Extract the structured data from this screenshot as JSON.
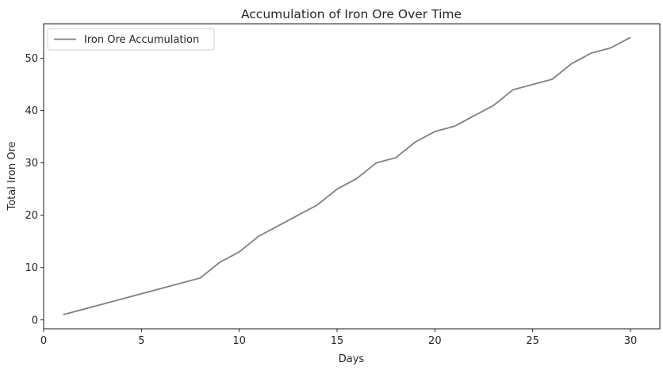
{
  "chart_data": {
    "type": "line",
    "title": "Accumulation of Iron Ore Over Time",
    "xlabel": "Days",
    "ylabel": "Total Iron Ore",
    "xlim": [
      0,
      31.5
    ],
    "ylim": [
      -1.7,
      56.6
    ],
    "xticks": [
      0,
      5,
      10,
      15,
      20,
      25,
      30
    ],
    "yticks": [
      0,
      10,
      20,
      30,
      40,
      50
    ],
    "grid": false,
    "legend_position": "top-left",
    "series": [
      {
        "name": "Iron Ore Accumulation",
        "color": "#808080",
        "x": [
          1,
          2,
          3,
          4,
          5,
          6,
          7,
          8,
          9,
          10,
          11,
          12,
          13,
          14,
          15,
          16,
          17,
          18,
          19,
          20,
          21,
          22,
          23,
          24,
          25,
          26,
          27,
          28,
          29,
          30
        ],
        "values": [
          1,
          2,
          3,
          4,
          5,
          6,
          7,
          8,
          11,
          13,
          16,
          18,
          20,
          22,
          25,
          27,
          30,
          31,
          34,
          36,
          37,
          39,
          41,
          44,
          45,
          46,
          49,
          51,
          52,
          54
        ]
      }
    ]
  }
}
